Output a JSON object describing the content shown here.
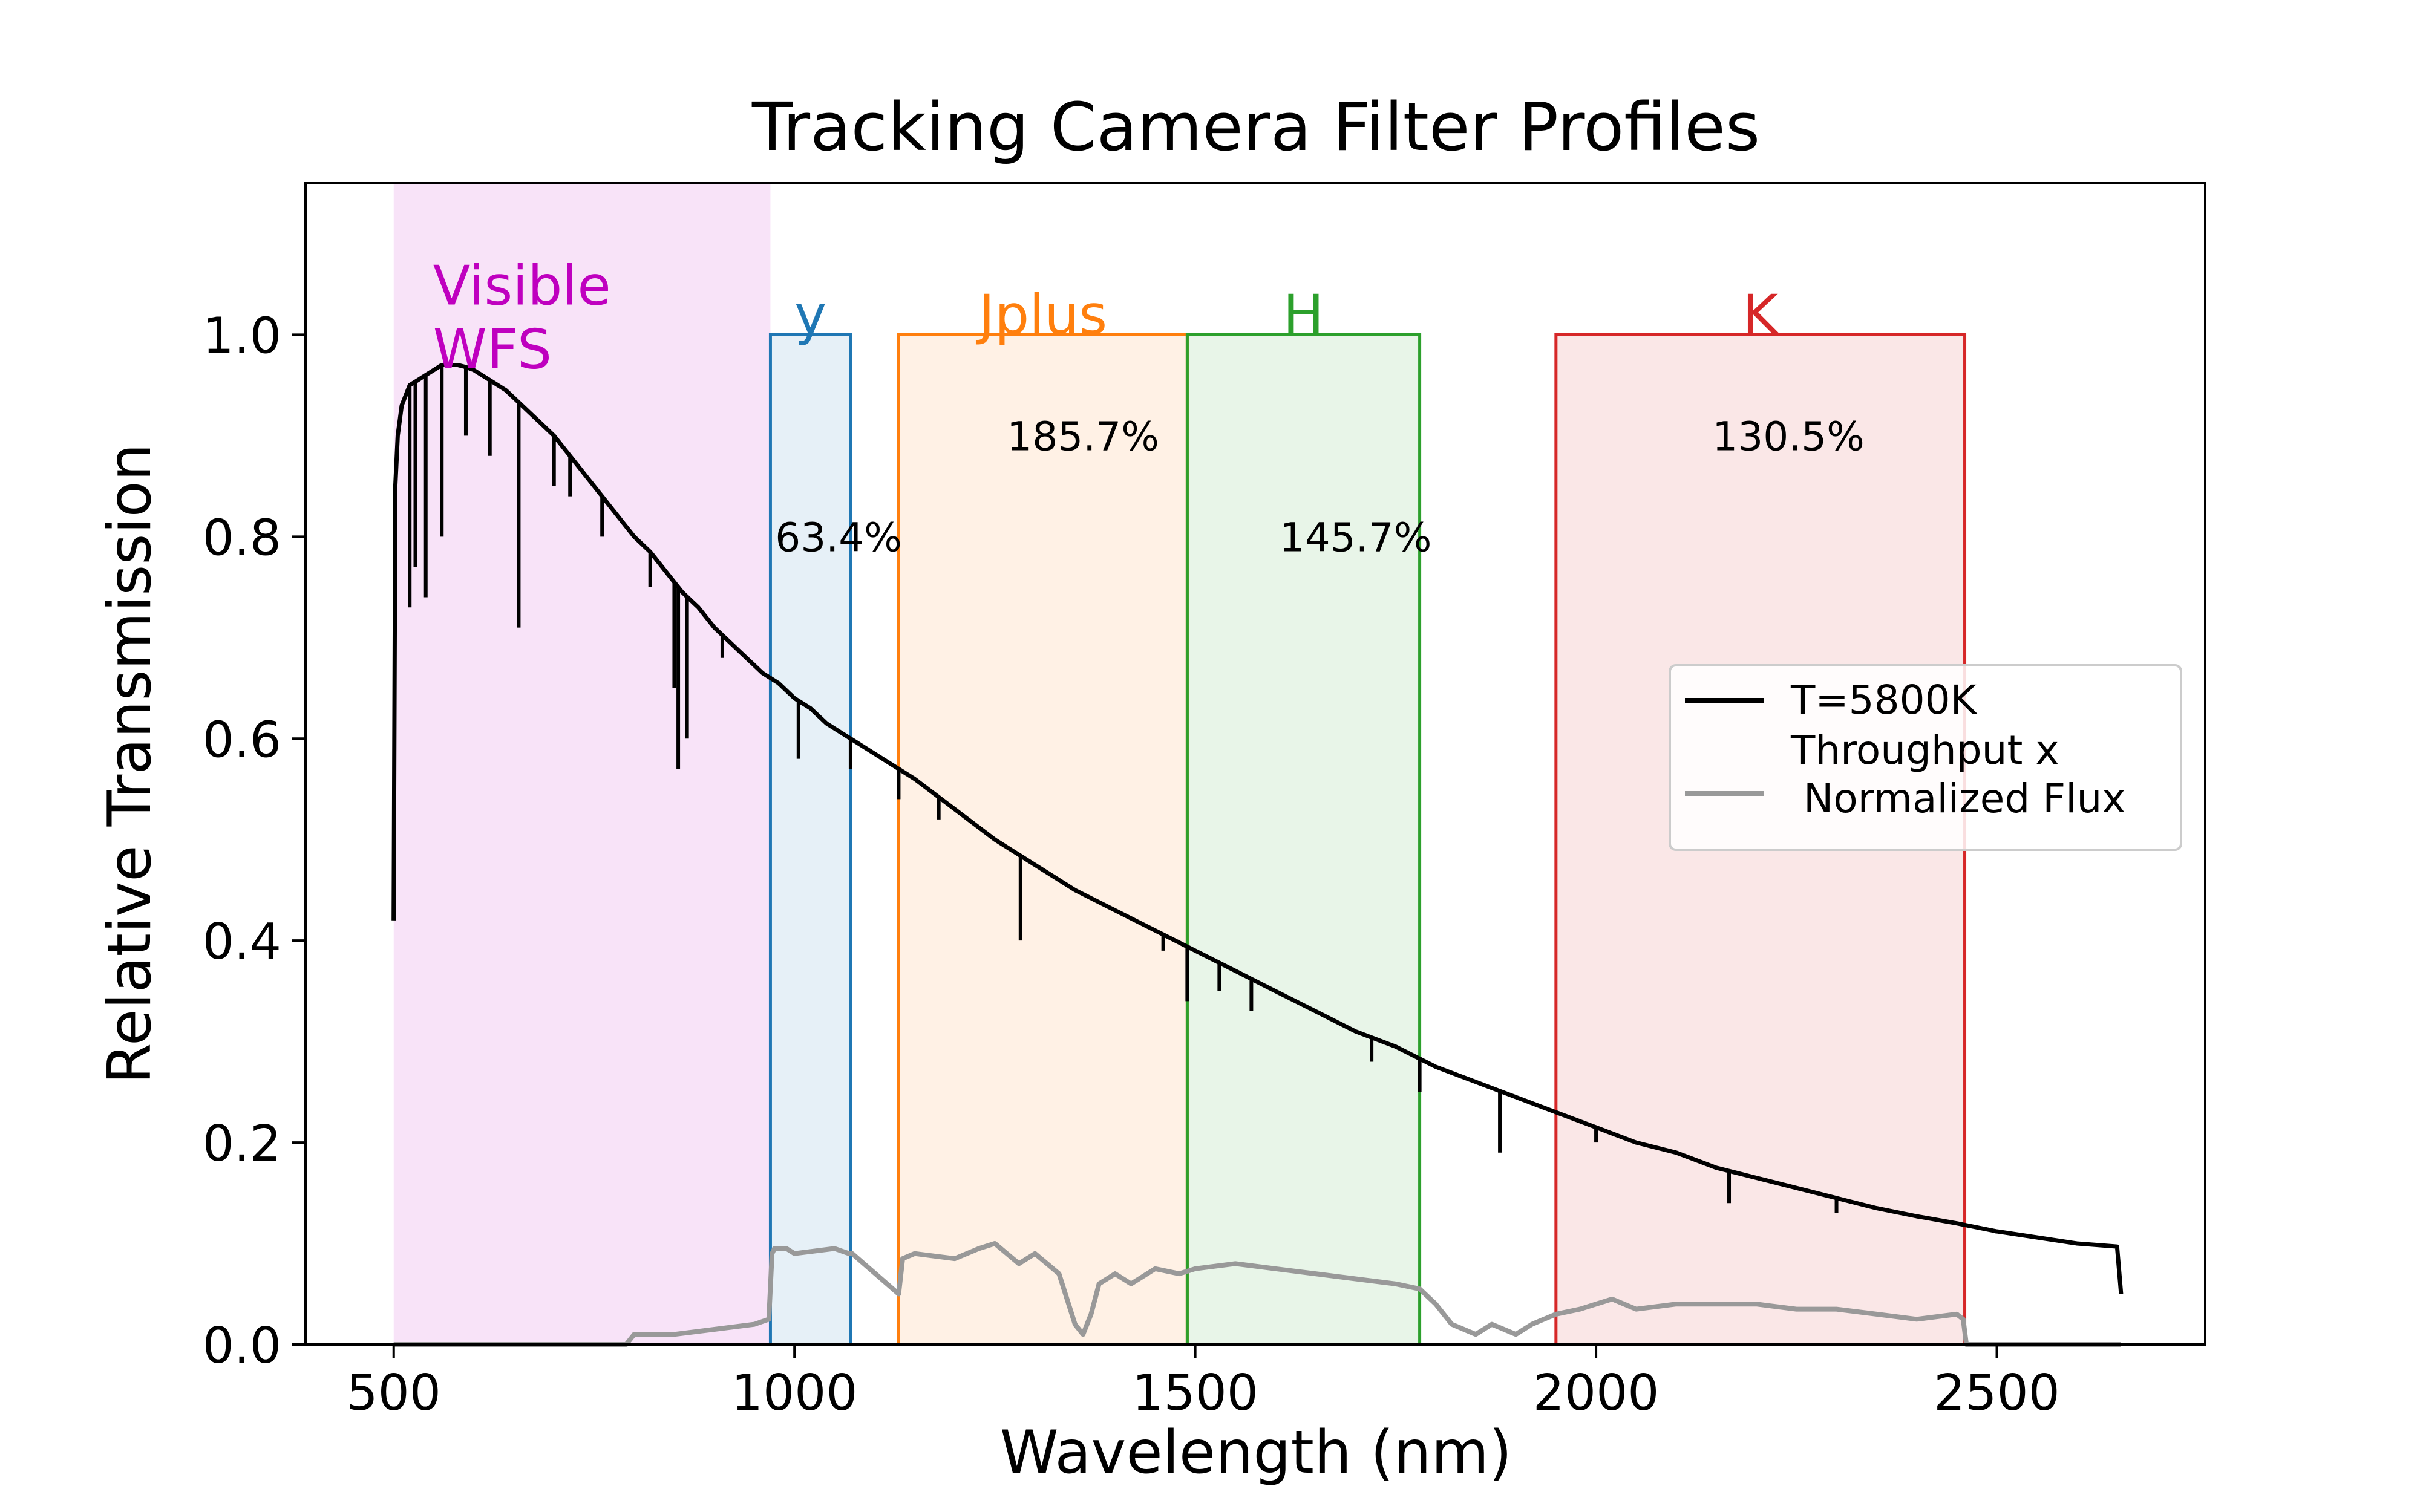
{
  "chart_data": {
    "type": "line",
    "title": "Tracking Camera Filter Profiles",
    "xlabel": "Wavelength (nm)",
    "ylabel": "Relative Transmission",
    "xlim": [
      390,
      2760
    ],
    "ylim": [
      0.0,
      1.15
    ],
    "xticks": [
      500,
      1000,
      1500,
      2000,
      2500
    ],
    "xtick_labels": [
      "500",
      "1000",
      "1500",
      "2000",
      "2500"
    ],
    "yticks": [
      0.0,
      0.2,
      0.4,
      0.6,
      0.8,
      1.0
    ],
    "ytick_labels": [
      "0.0",
      "0.2",
      "0.4",
      "0.6",
      "0.8",
      "1.0"
    ],
    "grid": false,
    "legend_position": "center-right",
    "visible_band": {
      "label": "Visible\nWFS",
      "x_start": 500,
      "x_end": 970,
      "color": "#bf00bf"
    },
    "filters": [
      {
        "name": "y",
        "x_start": 970,
        "x_end": 1070,
        "transmission": 1.0,
        "color": "#1f77b4",
        "percent": "63.4%",
        "percent_pos": [
          1055,
          0.8
        ]
      },
      {
        "name": "Jplus",
        "x_start": 1130,
        "x_end": 1490,
        "transmission": 1.0,
        "color": "#ff7f0e",
        "percent": "185.7%",
        "percent_pos": [
          1360,
          0.9
        ]
      },
      {
        "name": "H",
        "x_start": 1490,
        "x_end": 1780,
        "transmission": 1.0,
        "color": "#2ca02c",
        "percent": "145.7%",
        "percent_pos": [
          1700,
          0.8
        ]
      },
      {
        "name": "K",
        "x_start": 1950,
        "x_end": 2460,
        "transmission": 1.0,
        "color": "#d62728",
        "percent": "130.5%",
        "percent_pos": [
          2240,
          0.9
        ]
      }
    ],
    "series": [
      {
        "name": "T=5800K",
        "color": "#000000",
        "x": [
          500,
          502,
          505,
          510,
          515,
          520,
          530,
          540,
          550,
          560,
          570,
          580,
          590,
          600,
          620,
          640,
          660,
          680,
          700,
          720,
          740,
          760,
          780,
          800,
          820,
          840,
          860,
          880,
          900,
          920,
          940,
          960,
          980,
          1000,
          1020,
          1040,
          1060,
          1080,
          1100,
          1150,
          1200,
          1250,
          1300,
          1350,
          1400,
          1450,
          1500,
          1550,
          1600,
          1650,
          1700,
          1750,
          1800,
          1850,
          1900,
          1950,
          2000,
          2050,
          2100,
          2150,
          2200,
          2250,
          2300,
          2350,
          2400,
          2450,
          2500,
          2550,
          2600,
          2650,
          2655
        ],
        "y": [
          0.42,
          0.85,
          0.9,
          0.93,
          0.94,
          0.95,
          0.955,
          0.96,
          0.965,
          0.97,
          0.97,
          0.97,
          0.968,
          0.965,
          0.955,
          0.945,
          0.93,
          0.915,
          0.9,
          0.88,
          0.86,
          0.84,
          0.82,
          0.8,
          0.785,
          0.765,
          0.745,
          0.73,
          0.71,
          0.695,
          0.68,
          0.665,
          0.655,
          0.64,
          0.63,
          0.615,
          0.605,
          0.595,
          0.585,
          0.56,
          0.53,
          0.5,
          0.475,
          0.45,
          0.43,
          0.41,
          0.39,
          0.37,
          0.35,
          0.33,
          0.31,
          0.295,
          0.275,
          0.26,
          0.245,
          0.23,
          0.215,
          0.2,
          0.19,
          0.175,
          0.165,
          0.155,
          0.145,
          0.135,
          0.127,
          0.12,
          0.112,
          0.106,
          0.1,
          0.097,
          0.05
        ],
        "absorption_lines": [
          [
            520,
            0.73
          ],
          [
            527,
            0.77
          ],
          [
            540,
            0.74
          ],
          [
            560,
            0.8
          ],
          [
            590,
            0.9
          ],
          [
            620,
            0.88
          ],
          [
            656,
            0.71
          ],
          [
            700,
            0.85
          ],
          [
            720,
            0.84
          ],
          [
            760,
            0.8
          ],
          [
            820,
            0.75
          ],
          [
            850,
            0.65
          ],
          [
            855,
            0.57
          ],
          [
            866,
            0.6
          ],
          [
            910,
            0.68
          ],
          [
            1005,
            0.58
          ],
          [
            1070,
            0.57
          ],
          [
            1130,
            0.54
          ],
          [
            1180,
            0.52
          ],
          [
            1282,
            0.4
          ],
          [
            1460,
            0.39
          ],
          [
            1490,
            0.34
          ],
          [
            1530,
            0.35
          ],
          [
            1570,
            0.33
          ],
          [
            1720,
            0.28
          ],
          [
            1780,
            0.25
          ],
          [
            1880,
            0.19
          ],
          [
            2000,
            0.2
          ],
          [
            2166,
            0.14
          ],
          [
            2300,
            0.13
          ],
          [
            2500,
            0.11
          ]
        ]
      },
      {
        "name": "Throughput x\n Normalized Flux",
        "color": "#999999",
        "x": [
          500,
          790,
          800,
          850,
          900,
          950,
          968,
          972,
          975,
          990,
          1000,
          1050,
          1068,
          1072,
          1130,
          1135,
          1150,
          1200,
          1230,
          1250,
          1280,
          1300,
          1330,
          1350,
          1360,
          1370,
          1380,
          1400,
          1420,
          1450,
          1480,
          1500,
          1550,
          1600,
          1650,
          1700,
          1750,
          1780,
          1800,
          1820,
          1850,
          1870,
          1900,
          1920,
          1950,
          1980,
          2000,
          2020,
          2050,
          2100,
          2150,
          2200,
          2250,
          2300,
          2350,
          2400,
          2450,
          2458,
          2462,
          2655
        ],
        "y": [
          0.0,
          0.0,
          0.01,
          0.01,
          0.015,
          0.02,
          0.025,
          0.09,
          0.095,
          0.095,
          0.09,
          0.095,
          0.09,
          0.09,
          0.05,
          0.085,
          0.09,
          0.085,
          0.095,
          0.1,
          0.08,
          0.09,
          0.07,
          0.02,
          0.01,
          0.03,
          0.06,
          0.07,
          0.06,
          0.075,
          0.07,
          0.075,
          0.08,
          0.075,
          0.07,
          0.065,
          0.06,
          0.055,
          0.04,
          0.02,
          0.01,
          0.02,
          0.01,
          0.02,
          0.03,
          0.035,
          0.04,
          0.045,
          0.035,
          0.04,
          0.04,
          0.04,
          0.035,
          0.035,
          0.03,
          0.025,
          0.03,
          0.025,
          0.0,
          0.0
        ]
      }
    ]
  }
}
